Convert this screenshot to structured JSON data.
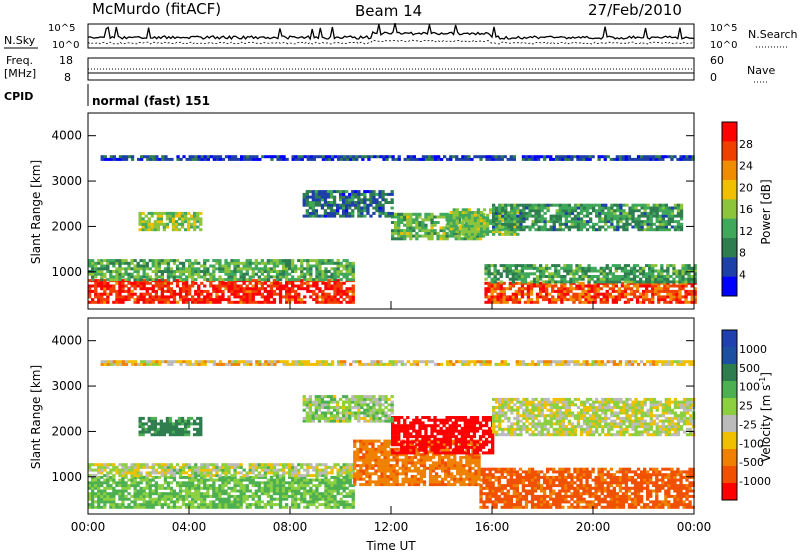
{
  "header": {
    "station": "McMurdo (fitACF)",
    "beam": "Beam 14",
    "date": "27/Feb/2010"
  },
  "param_panels": {
    "nsky_label": "N.Sky",
    "nsearch_label": "N.Search",
    "left_tick_top": "10^5",
    "left_tick_bottom": "10^0",
    "right_tick_top": "10^5",
    "right_tick_bottom": "10^0",
    "freq_label_1": "Freq.",
    "freq_label_2": "[MHz]",
    "freq_tick_top": "18",
    "freq_tick_bottom": "8",
    "nave_label": "Nave",
    "nave_tick_top": "60",
    "nave_tick_bottom": "0",
    "cpid_label": "CPID",
    "cpid_value": "normal (fast) 151"
  },
  "colors": {
    "power_scale": [
      "#0000ff",
      "#1d3fa8",
      "#2e7d4e",
      "#3fa85a",
      "#8cc43c",
      "#f0c000",
      "#f08c00",
      "#f04000",
      "#ff0000"
    ],
    "velocity_scale": [
      "#2040b0",
      "#1d4fa0",
      "#2e7d4e",
      "#4cb050",
      "#8cd040",
      "#bbbbbb",
      "#f0c000",
      "#f08000",
      "#f05000",
      "#ff0000"
    ]
  },
  "chart_data": [
    {
      "type": "heatmap",
      "title": "",
      "xlabel": "",
      "ylabel": "Slant Range [km]",
      "colorbar_label": "Power [dB]",
      "colorbar_ticks": [
        "4",
        "8",
        "12",
        "16",
        "20",
        "24",
        "28"
      ],
      "xlim": [
        0,
        24
      ],
      "ylim": [
        180,
        4500
      ],
      "y_ticks": [
        "1000",
        "2000",
        "3000",
        "4000"
      ],
      "value_range": [
        0,
        30
      ],
      "bands": [
        {
          "t0": 0,
          "t1": 10.5,
          "r0": 300,
          "r1": 800,
          "value": 27
        },
        {
          "t0": 0,
          "t1": 10.5,
          "r0": 800,
          "r1": 1250,
          "value": 12
        },
        {
          "t0": 15.7,
          "t1": 24,
          "r0": 300,
          "r1": 750,
          "value": 25
        },
        {
          "t0": 15.7,
          "t1": 24,
          "r0": 750,
          "r1": 1150,
          "value": 11
        },
        {
          "t0": 12,
          "t1": 15.7,
          "r0": 1700,
          "r1": 2300,
          "value": 13
        },
        {
          "t0": 14.2,
          "t1": 17,
          "r0": 1800,
          "r1": 2400,
          "value": 14
        },
        {
          "t0": 16,
          "t1": 23.5,
          "r0": 1900,
          "r1": 2500,
          "value": 10
        },
        {
          "t0": 2,
          "t1": 4.5,
          "r0": 1900,
          "r1": 2300,
          "value": 15
        },
        {
          "t0": 8.5,
          "t1": 12,
          "r0": 2200,
          "r1": 2800,
          "value": 7
        },
        {
          "t0": 0.5,
          "t1": 24,
          "r0": 3450,
          "r1": 3550,
          "value": 5
        }
      ]
    },
    {
      "type": "heatmap",
      "title": "",
      "xlabel": "Time UT",
      "ylabel": "Slant Range [km]",
      "colorbar_label": "Velocity [m s^-1]",
      "colorbar_ticks": [
        "1000",
        "500",
        "100",
        "25",
        "-25",
        "-100",
        "-500",
        "-1000"
      ],
      "x_ticks": [
        "00:00",
        "04:00",
        "08:00",
        "12:00",
        "16:00",
        "20:00",
        "00:00"
      ],
      "xlim": [
        0,
        24
      ],
      "ylim": [
        180,
        4500
      ],
      "y_ticks": [
        "1000",
        "2000",
        "3000",
        "4000"
      ],
      "bands": [
        {
          "t0": 0,
          "t1": 10.5,
          "r0": 300,
          "r1": 1000,
          "value": 120
        },
        {
          "t0": 0,
          "t1": 10.5,
          "r0": 1000,
          "r1": 1300,
          "value": 20
        },
        {
          "t0": 15.5,
          "t1": 24,
          "r0": 300,
          "r1": 1150,
          "value": -300
        },
        {
          "t0": 10.5,
          "t1": 15.5,
          "r0": 800,
          "r1": 1800,
          "value": -200
        },
        {
          "t0": 12,
          "t1": 16,
          "r0": 1500,
          "r1": 2300,
          "value": -600
        },
        {
          "t0": 16,
          "t1": 24,
          "r0": 1900,
          "r1": 2700,
          "value": 10
        },
        {
          "t0": 2,
          "t1": 4.5,
          "r0": 1900,
          "r1": 2300,
          "value": 300
        },
        {
          "t0": 8.5,
          "t1": 12,
          "r0": 2200,
          "r1": 2800,
          "value": 50
        },
        {
          "t0": 0.5,
          "t1": 24,
          "r0": 3450,
          "r1": 3550,
          "value": -50
        }
      ]
    }
  ]
}
